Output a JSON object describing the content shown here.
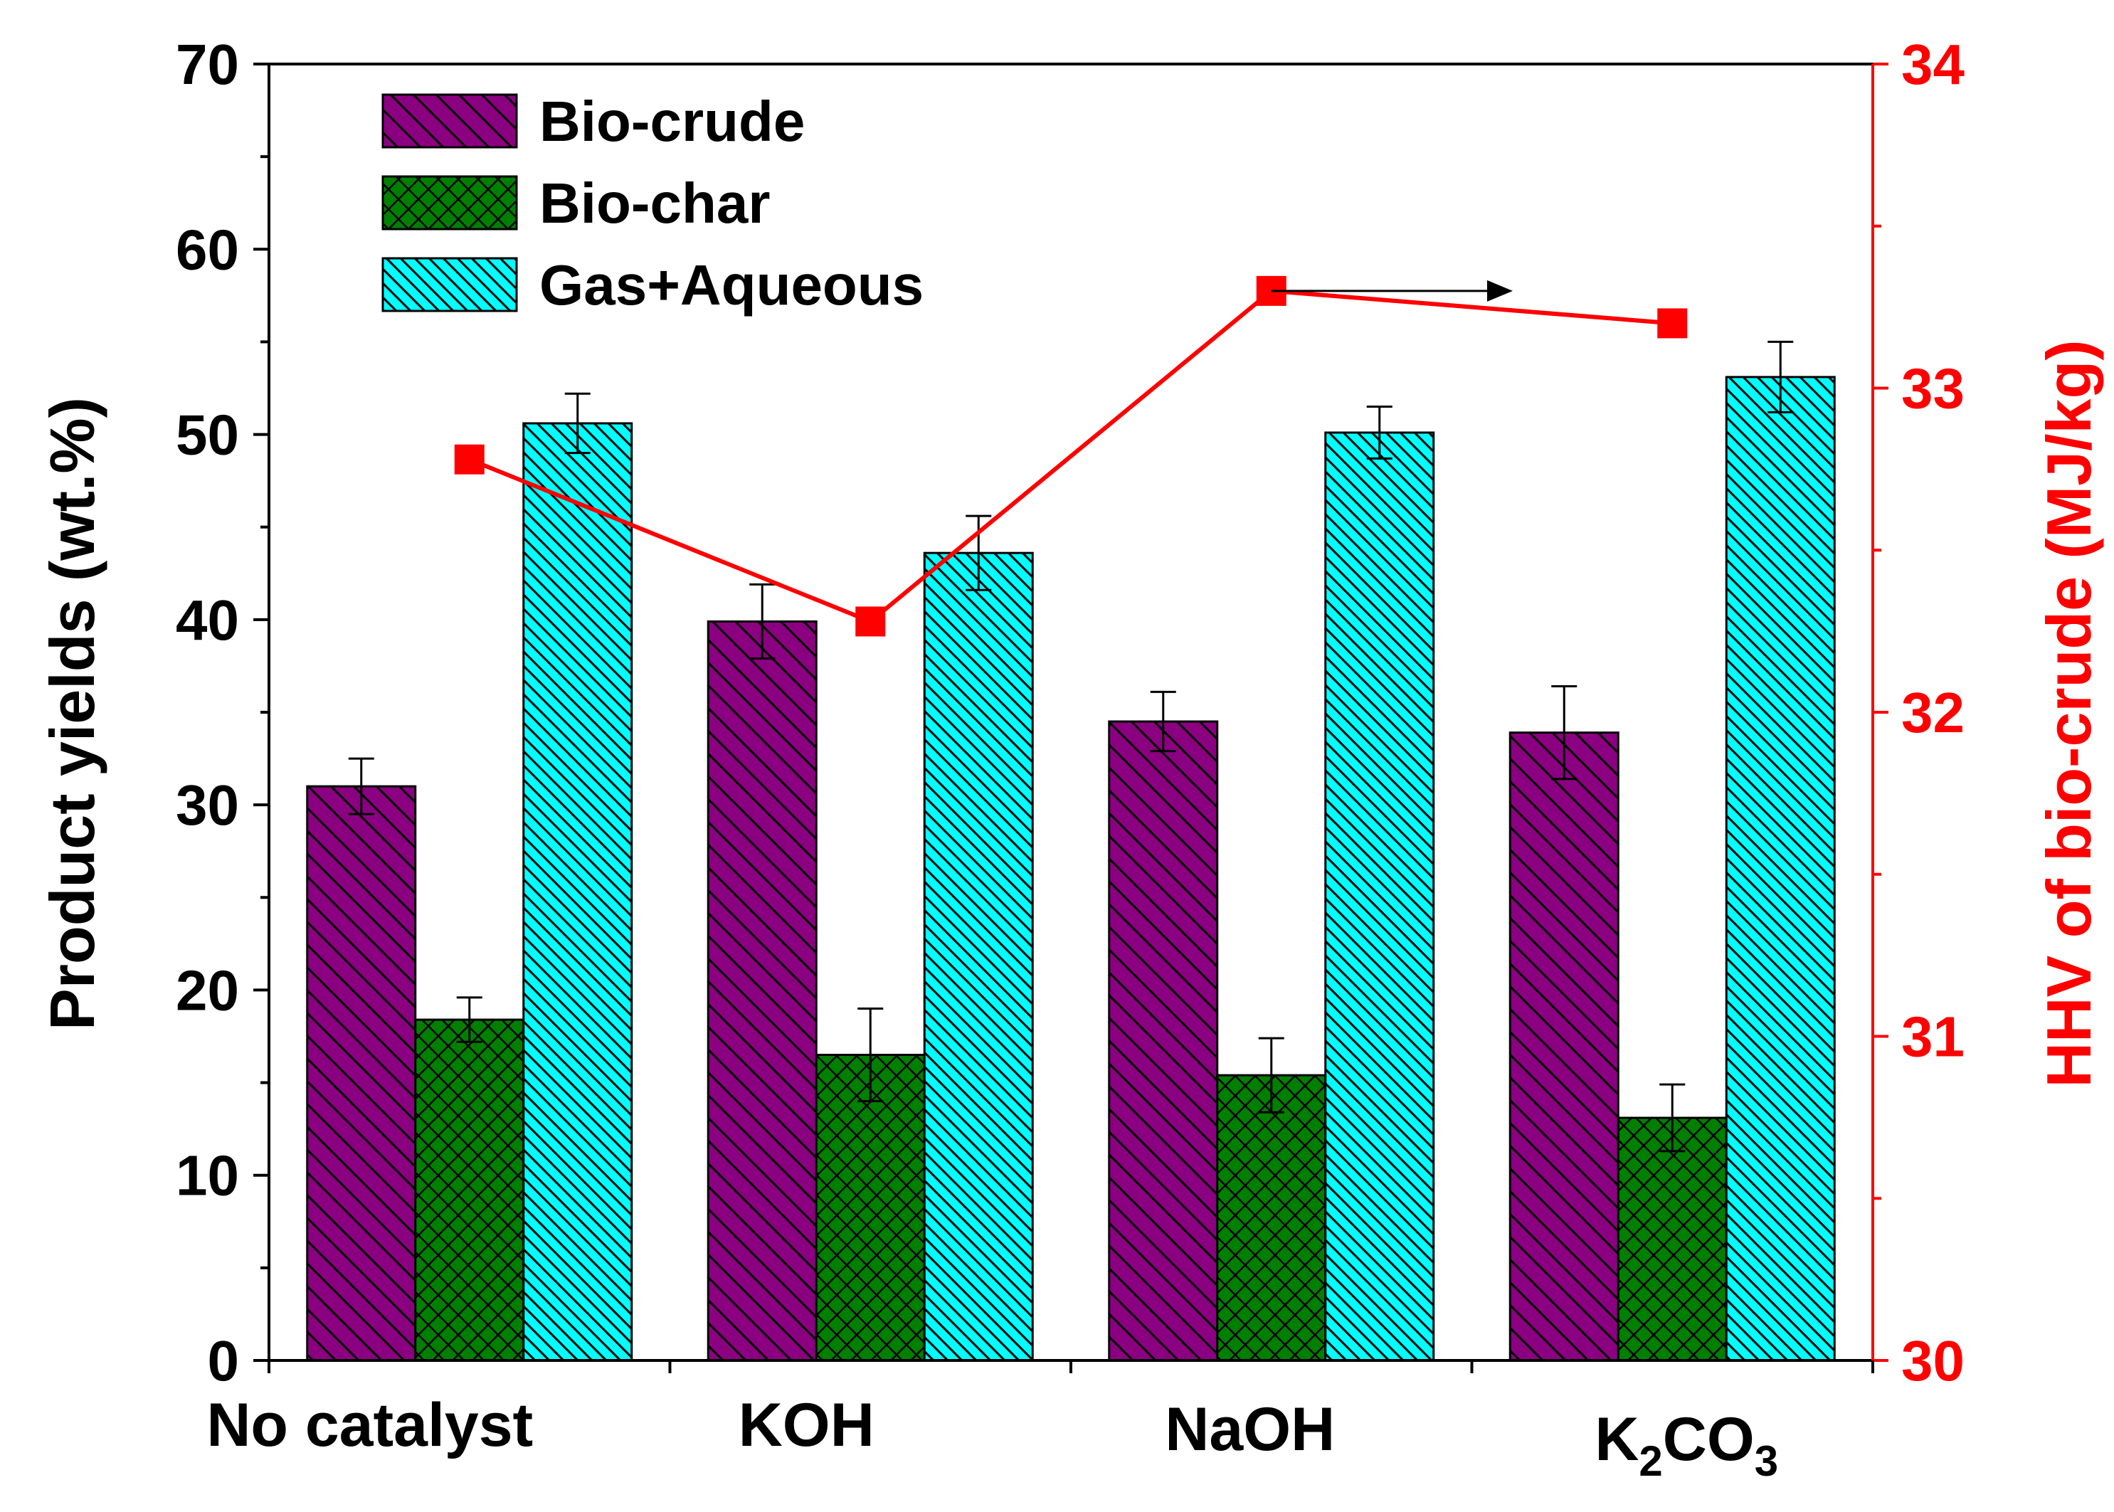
{
  "chart_data": {
    "type": "bar",
    "categories": [
      "No catalyst",
      "KOH",
      "NaOH",
      "K2CO3"
    ],
    "category_labels": [
      {
        "main": "No catalyst"
      },
      {
        "main": "KOH"
      },
      {
        "main": "NaOH"
      },
      {
        "parts": [
          {
            "text": "K",
            "sub": false
          },
          {
            "text": "2",
            "sub": true
          },
          {
            "text": "CO",
            "sub": false
          },
          {
            "text": "3",
            "sub": true
          }
        ]
      }
    ],
    "ylabel": "Product yields (wt.%)",
    "ylim": [
      0,
      70
    ],
    "yticks": [
      0,
      10,
      20,
      30,
      40,
      50,
      60,
      70
    ],
    "y2label": "HHV of bio-crude (MJ/kg)",
    "y2lim": [
      30,
      34
    ],
    "y2ticks": [
      30,
      31,
      32,
      33,
      34
    ],
    "y2color": "#ff0000",
    "series": [
      {
        "name": "Bio-crude",
        "color": "#8b0080",
        "pattern": "diag-left",
        "values": [
          31.0,
          39.9,
          34.5,
          33.9
        ],
        "errors": [
          1.5,
          2.0,
          1.6,
          2.5
        ]
      },
      {
        "name": "Bio-char",
        "color": "#007f00",
        "pattern": "crosshatch",
        "values": [
          18.4,
          16.5,
          15.4,
          13.1
        ],
        "errors": [
          1.2,
          2.5,
          2.0,
          1.8
        ]
      },
      {
        "name": "Gas+Aqueous",
        "color": "#00ffff",
        "pattern": "diag-left-dense",
        "values": [
          50.6,
          43.6,
          50.1,
          53.1
        ],
        "errors": [
          1.6,
          2.0,
          1.4,
          1.9
        ]
      }
    ],
    "line_series": {
      "axis": "right",
      "color": "#ff0000",
      "marker": "square",
      "values": [
        32.78,
        32.28,
        33.3,
        33.2
      ]
    },
    "annotations": [
      {
        "type": "arrow",
        "points_to": "right-axis"
      }
    ],
    "legend": {
      "placement": "top-left"
    },
    "grid": false
  }
}
